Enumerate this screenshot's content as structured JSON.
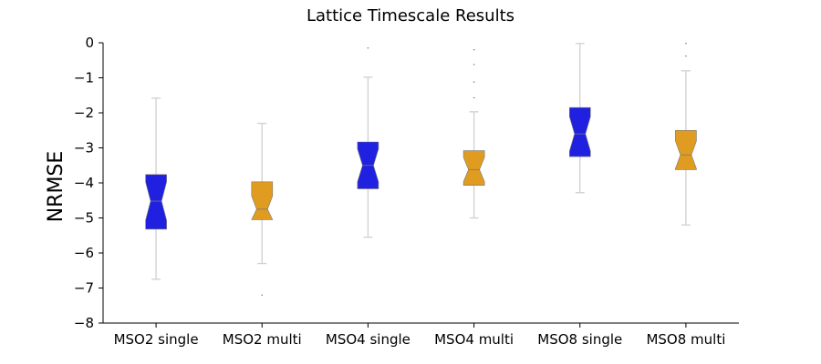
{
  "chart_data": {
    "type": "box",
    "title": "Lattice Timescale Results",
    "xlabel": "",
    "ylabel": "NRMSE",
    "ylim": [
      -8,
      0
    ],
    "yticks": [
      0,
      -1,
      -2,
      -3,
      -4,
      -5,
      -6,
      -7,
      -8
    ],
    "ytick_labels": [
      "0",
      "−1",
      "−2",
      "−3",
      "−4",
      "−5",
      "−6",
      "−7",
      "−8"
    ],
    "notched": true,
    "grid": false,
    "categories": [
      "MSO2 single",
      "MSO2 multi",
      "MSO4 single",
      "MSO4 multi",
      "MSO8 single",
      "MSO8 multi"
    ],
    "colors": [
      "#2020e0",
      "#e09c20",
      "#2020e0",
      "#e09c20",
      "#2020e0",
      "#e09c20"
    ],
    "boxes": [
      {
        "whislo": -6.75,
        "q1": -5.32,
        "med": -4.52,
        "q3": -3.76,
        "whishi": -1.58,
        "fliers": []
      },
      {
        "whislo": -6.3,
        "q1": -5.05,
        "med": -4.75,
        "q3": -3.97,
        "whishi": -2.3,
        "fliers": [
          -7.2
        ]
      },
      {
        "whislo": -5.55,
        "q1": -4.17,
        "med": -3.5,
        "q3": -2.83,
        "whishi": -0.98,
        "fliers": [
          -0.15
        ]
      },
      {
        "whislo": -5.0,
        "q1": -4.07,
        "med": -3.62,
        "q3": -3.08,
        "whishi": -1.97,
        "fliers": [
          -0.2,
          -0.62,
          -1.12,
          -1.57
        ]
      },
      {
        "whislo": -4.28,
        "q1": -3.25,
        "med": -2.6,
        "q3": -1.85,
        "whishi": -0.02,
        "fliers": []
      },
      {
        "whislo": -5.2,
        "q1": -3.62,
        "med": -3.2,
        "q3": -2.5,
        "whishi": -0.8,
        "fliers": [
          -0.02,
          -0.38
        ]
      }
    ]
  }
}
